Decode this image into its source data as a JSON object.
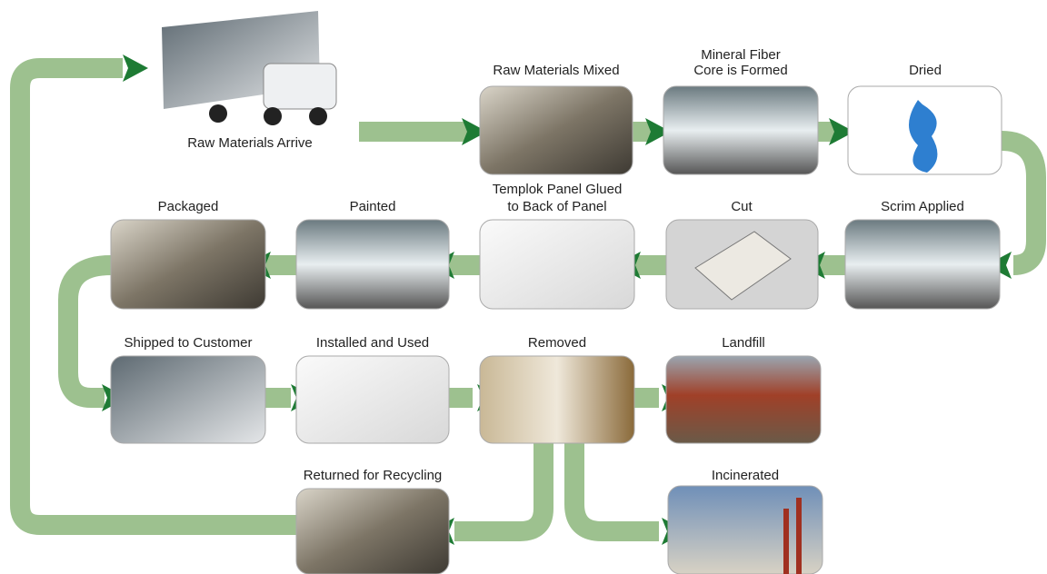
{
  "nodes": [
    {
      "label": [
        "Raw Materials Arrive"
      ]
    },
    {
      "label": [
        "Raw Materials Mixed"
      ]
    },
    {
      "label": [
        "Mineral Fiber",
        "Core is Formed"
      ]
    },
    {
      "label": [
        "Dried"
      ]
    },
    {
      "label": [
        "Scrim Applied"
      ]
    },
    {
      "label": [
        "Cut"
      ]
    },
    {
      "label": [
        "Templok Panel Glued",
        "to Back of Panel"
      ]
    },
    {
      "label": [
        "Painted"
      ]
    },
    {
      "label": [
        "Packaged"
      ]
    },
    {
      "label": [
        "Shipped to Customer"
      ]
    },
    {
      "label": [
        "Installed and Used"
      ]
    },
    {
      "label": [
        "Removed"
      ]
    },
    {
      "label": [
        "Landfill"
      ]
    },
    {
      "label": [
        "Returned for Recycling"
      ]
    },
    {
      "label": [
        "Incinerated"
      ]
    }
  ]
}
